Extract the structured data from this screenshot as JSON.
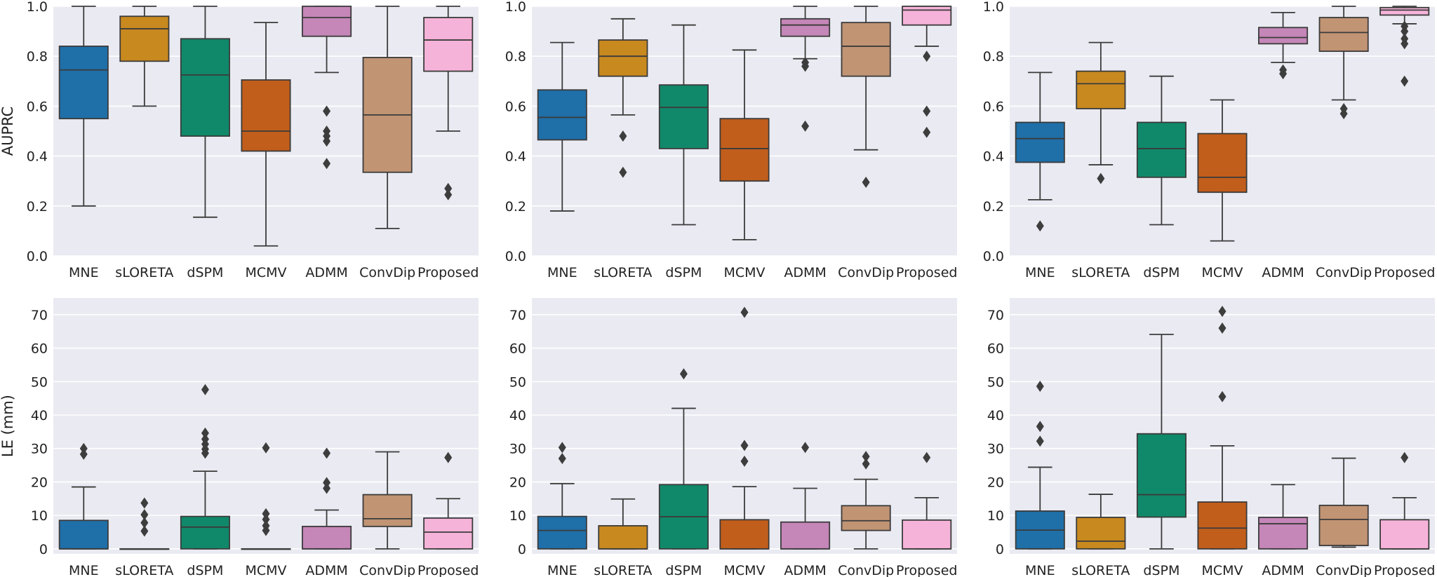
{
  "figure_title": "",
  "colors": {
    "background": "#eaeaf2",
    "grid": "#ffffff",
    "whisker": "#3b3b3b",
    "methods": [
      "#1f6fa8",
      "#c8891f",
      "#10896a",
      "#c15e1c",
      "#c586b8",
      "#c19474",
      "#f6b3d9"
    ]
  },
  "chart_data": [
    {
      "type": "box",
      "ylabel": "AUPRC",
      "ylim": [
        0,
        1
      ],
      "yticks": [
        "0.0",
        "0.2",
        "0.4",
        "0.6",
        "0.8",
        "1.0"
      ],
      "ytick_values": [
        0,
        0.2,
        0.4,
        0.6,
        0.8,
        1.0
      ],
      "categories": [
        "MNE",
        "sLORETA",
        "dSPM",
        "MCMV",
        "ADMM",
        "ConvDip",
        "Proposed"
      ],
      "boxes": [
        {
          "whislo": 0.2,
          "q1": 0.55,
          "med": 0.745,
          "q3": 0.84,
          "whishi": 1.0,
          "fliers": []
        },
        {
          "whislo": 0.6,
          "q1": 0.78,
          "med": 0.91,
          "q3": 0.96,
          "whishi": 1.0,
          "fliers": []
        },
        {
          "whislo": 0.155,
          "q1": 0.48,
          "med": 0.725,
          "q3": 0.87,
          "whishi": 1.0,
          "fliers": []
        },
        {
          "whislo": 0.04,
          "q1": 0.42,
          "med": 0.5,
          "q3": 0.705,
          "whishi": 0.935,
          "fliers": []
        },
        {
          "whislo": 0.735,
          "q1": 0.88,
          "med": 0.955,
          "q3": 1.0,
          "whishi": 1.0,
          "fliers": [
            0.58,
            0.5,
            0.48,
            0.46,
            0.37
          ]
        },
        {
          "whislo": 0.11,
          "q1": 0.335,
          "med": 0.565,
          "q3": 0.795,
          "whishi": 1.0,
          "fliers": []
        },
        {
          "whislo": 0.5,
          "q1": 0.74,
          "med": 0.865,
          "q3": 0.955,
          "whishi": 1.0,
          "fliers": [
            0.27,
            0.245
          ]
        }
      ]
    },
    {
      "type": "box",
      "ylabel": "",
      "ylim": [
        0,
        1
      ],
      "yticks": [
        "0.0",
        "0.2",
        "0.4",
        "0.6",
        "0.8",
        "1.0"
      ],
      "ytick_values": [
        0,
        0.2,
        0.4,
        0.6,
        0.8,
        1.0
      ],
      "categories": [
        "MNE",
        "sLORETA",
        "dSPM",
        "MCMV",
        "ADMM",
        "ConvDip",
        "Proposed"
      ],
      "boxes": [
        {
          "whislo": 0.18,
          "q1": 0.465,
          "med": 0.555,
          "q3": 0.665,
          "whishi": 0.855,
          "fliers": []
        },
        {
          "whislo": 0.565,
          "q1": 0.72,
          "med": 0.8,
          "q3": 0.865,
          "whishi": 0.95,
          "fliers": [
            0.48,
            0.335
          ]
        },
        {
          "whislo": 0.125,
          "q1": 0.43,
          "med": 0.595,
          "q3": 0.685,
          "whishi": 0.925,
          "fliers": []
        },
        {
          "whislo": 0.065,
          "q1": 0.3,
          "med": 0.43,
          "q3": 0.55,
          "whishi": 0.825,
          "fliers": []
        },
        {
          "whislo": 0.79,
          "q1": 0.88,
          "med": 0.925,
          "q3": 0.95,
          "whishi": 1.0,
          "fliers": [
            0.775,
            0.76,
            0.52
          ]
        },
        {
          "whislo": 0.425,
          "q1": 0.72,
          "med": 0.84,
          "q3": 0.935,
          "whishi": 1.0,
          "fliers": [
            0.295
          ]
        },
        {
          "whislo": 0.84,
          "q1": 0.925,
          "med": 0.985,
          "q3": 1.0,
          "whishi": 1.0,
          "fliers": [
            0.8,
            0.58,
            0.495
          ]
        }
      ]
    },
    {
      "type": "box",
      "ylabel": "",
      "ylim": [
        0,
        1
      ],
      "yticks": [
        "0.0",
        "0.2",
        "0.4",
        "0.6",
        "0.8",
        "1.0"
      ],
      "ytick_values": [
        0,
        0.2,
        0.4,
        0.6,
        0.8,
        1.0
      ],
      "categories": [
        "MNE",
        "sLORETA",
        "dSPM",
        "MCMV",
        "ADMM",
        "ConvDip",
        "Proposed"
      ],
      "boxes": [
        {
          "whislo": 0.225,
          "q1": 0.375,
          "med": 0.47,
          "q3": 0.535,
          "whishi": 0.735,
          "fliers": [
            0.12
          ]
        },
        {
          "whislo": 0.365,
          "q1": 0.59,
          "med": 0.69,
          "q3": 0.74,
          "whishi": 0.855,
          "fliers": [
            0.31
          ]
        },
        {
          "whislo": 0.125,
          "q1": 0.315,
          "med": 0.43,
          "q3": 0.535,
          "whishi": 0.72,
          "fliers": []
        },
        {
          "whislo": 0.06,
          "q1": 0.255,
          "med": 0.315,
          "q3": 0.49,
          "whishi": 0.625,
          "fliers": []
        },
        {
          "whislo": 0.775,
          "q1": 0.85,
          "med": 0.875,
          "q3": 0.915,
          "whishi": 0.975,
          "fliers": [
            0.745,
            0.73
          ]
        },
        {
          "whislo": 0.625,
          "q1": 0.82,
          "med": 0.895,
          "q3": 0.955,
          "whishi": 1.0,
          "fliers": [
            0.59,
            0.57
          ]
        },
        {
          "whislo": 0.93,
          "q1": 0.965,
          "med": 0.985,
          "q3": 0.995,
          "whishi": 1.0,
          "fliers": [
            0.92,
            0.9,
            0.87,
            0.85,
            0.7
          ]
        }
      ]
    },
    {
      "type": "box",
      "ylabel": "LE (mm)",
      "ylim": [
        -1.5,
        75
      ],
      "yticks": [
        "0",
        "10",
        "20",
        "30",
        "40",
        "50",
        "60",
        "70"
      ],
      "ytick_values": [
        0,
        10,
        20,
        30,
        40,
        50,
        60,
        70
      ],
      "categories": [
        "MNE",
        "sLORETA",
        "dSPM",
        "MCMV",
        "ADMM",
        "ConvDip",
        "Proposed"
      ],
      "boxes": [
        {
          "whislo": 0,
          "q1": 0,
          "med": 0,
          "q3": 8.5,
          "whishi": 18.5,
          "fliers": [
            30,
            28.3
          ]
        },
        {
          "whislo": 0,
          "q1": 0,
          "med": 0,
          "q3": 0,
          "whishi": 0,
          "fliers": [
            13.7,
            10.2,
            7.8,
            5.3
          ]
        },
        {
          "whislo": 0,
          "q1": 0,
          "med": 6.5,
          "q3": 9.7,
          "whishi": 23.2,
          "fliers": [
            47.6,
            34.6,
            32.8,
            31.3,
            29.8,
            28.6
          ]
        },
        {
          "whislo": 0,
          "q1": 0,
          "med": 0,
          "q3": 0,
          "whishi": 0,
          "fliers": [
            30.2,
            10.5,
            8.8,
            6.9,
            5.5
          ]
        },
        {
          "whislo": 0,
          "q1": 0,
          "med": 0,
          "q3": 6.7,
          "whishi": 11.6,
          "fliers": [
            28.6,
            19.8,
            18.1
          ]
        },
        {
          "whislo": 0,
          "q1": 6.7,
          "med": 9,
          "q3": 16.2,
          "whishi": 29,
          "fliers": []
        },
        {
          "whislo": 0,
          "q1": 0,
          "med": 5,
          "q3": 9.2,
          "whishi": 15,
          "fliers": [
            27.3
          ]
        }
      ]
    },
    {
      "type": "box",
      "ylabel": "",
      "ylim": [
        -1.5,
        75
      ],
      "yticks": [
        "0",
        "10",
        "20",
        "30",
        "40",
        "50",
        "60",
        "70"
      ],
      "ytick_values": [
        0,
        10,
        20,
        30,
        40,
        50,
        60,
        70
      ],
      "categories": [
        "MNE",
        "sLORETA",
        "dSPM",
        "MCMV",
        "ADMM",
        "ConvDip",
        "Proposed"
      ],
      "boxes": [
        {
          "whislo": 0,
          "q1": 0,
          "med": 5.5,
          "q3": 9.7,
          "whishi": 19.5,
          "fliers": [
            30.3,
            27
          ]
        },
        {
          "whislo": 0,
          "q1": 0,
          "med": 0,
          "q3": 6.9,
          "whishi": 14.9,
          "fliers": []
        },
        {
          "whislo": 0,
          "q1": 0,
          "med": 9.6,
          "q3": 19.2,
          "whishi": 42,
          "fliers": [
            52.3
          ]
        },
        {
          "whislo": 0,
          "q1": 0,
          "med": 0,
          "q3": 8.7,
          "whishi": 18.6,
          "fliers": [
            70.7,
            30.9,
            26.2
          ]
        },
        {
          "whislo": 0,
          "q1": 0,
          "med": 0,
          "q3": 8,
          "whishi": 18.1,
          "fliers": [
            30.3
          ]
        },
        {
          "whislo": 0,
          "q1": 5.5,
          "med": 8.4,
          "q3": 12.9,
          "whishi": 20.8,
          "fliers": [
            27.6,
            25.4
          ]
        },
        {
          "whislo": 0,
          "q1": 0,
          "med": 0,
          "q3": 8.6,
          "whishi": 15.3,
          "fliers": [
            27.3
          ]
        }
      ]
    },
    {
      "type": "box",
      "ylabel": "",
      "ylim": [
        -1.5,
        75
      ],
      "yticks": [
        "0",
        "10",
        "20",
        "30",
        "40",
        "50",
        "60",
        "70"
      ],
      "ytick_values": [
        0,
        10,
        20,
        30,
        40,
        50,
        60,
        70
      ],
      "categories": [
        "MNE",
        "sLORETA",
        "dSPM",
        "MCMV",
        "ADMM",
        "ConvDip",
        "Proposed"
      ],
      "boxes": [
        {
          "whislo": 0,
          "q1": 0,
          "med": 5.6,
          "q3": 11.3,
          "whishi": 24.4,
          "fliers": [
            48.6,
            36.6,
            32.2
          ]
        },
        {
          "whislo": 0,
          "q1": 0,
          "med": 2.3,
          "q3": 9.4,
          "whishi": 16.3,
          "fliers": []
        },
        {
          "whislo": 0,
          "q1": 9.5,
          "med": 16.2,
          "q3": 34.4,
          "whishi": 64.1,
          "fliers": []
        },
        {
          "whislo": 0,
          "q1": 0,
          "med": 6.2,
          "q3": 14,
          "whishi": 30.8,
          "fliers": [
            71,
            66,
            45.5
          ]
        },
        {
          "whislo": 0,
          "q1": 0,
          "med": 7.5,
          "q3": 9.4,
          "whishi": 19.2,
          "fliers": []
        },
        {
          "whislo": 0.5,
          "q1": 1,
          "med": 8.8,
          "q3": 13,
          "whishi": 27.1,
          "fliers": []
        },
        {
          "whislo": 0,
          "q1": 0,
          "med": 0,
          "q3": 8.7,
          "whishi": 15.3,
          "fliers": [
            27.3
          ]
        }
      ]
    }
  ]
}
